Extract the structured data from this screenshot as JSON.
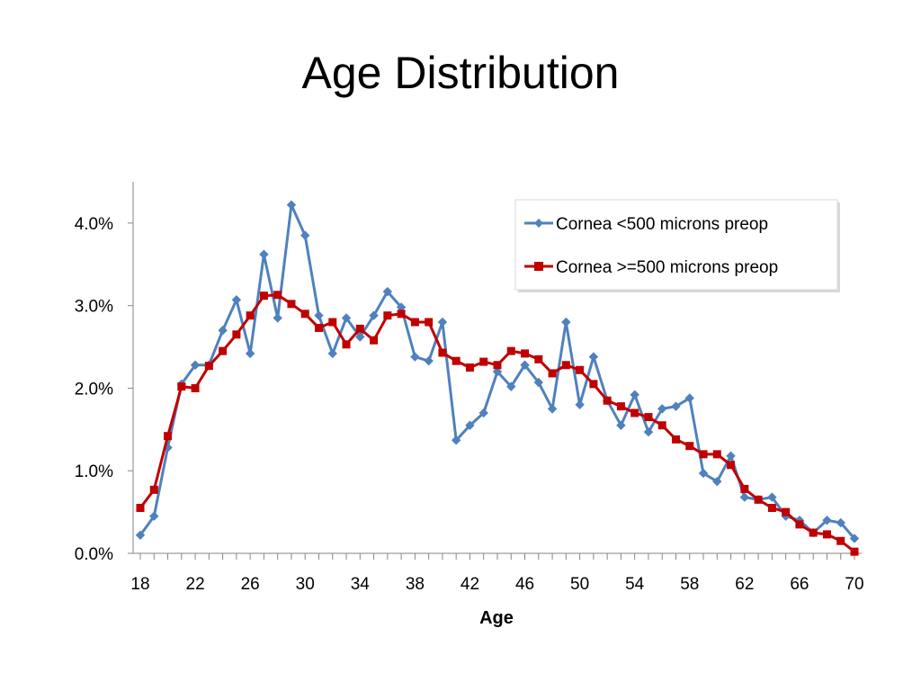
{
  "slide": {
    "title": "Age Distribution"
  },
  "colors": {
    "series1": "#4F81BD",
    "series2": "#C00000",
    "axis": "#868686"
  },
  "chart_data": {
    "type": "line",
    "title": "",
    "xlabel": "Age",
    "ylabel": "",
    "x": [
      18,
      19,
      20,
      21,
      22,
      23,
      24,
      25,
      26,
      27,
      28,
      29,
      30,
      31,
      32,
      33,
      34,
      35,
      36,
      37,
      38,
      39,
      40,
      41,
      42,
      43,
      44,
      45,
      46,
      47,
      48,
      49,
      50,
      51,
      52,
      53,
      54,
      55,
      56,
      57,
      58,
      59,
      60,
      61,
      62,
      63,
      64,
      65,
      66,
      67,
      68,
      69,
      70
    ],
    "x_ticks": [
      "18",
      "22",
      "26",
      "30",
      "34",
      "38",
      "42",
      "46",
      "50",
      "54",
      "58",
      "62",
      "66",
      "70"
    ],
    "y_ticks": [
      "0.0%",
      "1.0%",
      "2.0%",
      "3.0%",
      "4.0%"
    ],
    "ylim": [
      0,
      4.5
    ],
    "y_unit": "percent",
    "legend_position": "top-right",
    "series": [
      {
        "name": "Cornea <500 microns preop",
        "marker": "diamond",
        "values": [
          0.22,
          0.45,
          1.28,
          2.05,
          2.28,
          2.28,
          2.7,
          3.07,
          2.42,
          3.62,
          2.85,
          4.22,
          3.85,
          2.88,
          2.42,
          2.85,
          2.62,
          2.88,
          3.17,
          2.98,
          2.38,
          2.33,
          2.8,
          1.37,
          1.55,
          1.7,
          2.2,
          2.02,
          2.28,
          2.07,
          1.75,
          2.8,
          1.8,
          2.38,
          1.85,
          1.55,
          1.92,
          1.47,
          1.75,
          1.78,
          1.88,
          0.97,
          0.87,
          1.18,
          0.68,
          0.65,
          0.68,
          0.45,
          0.4,
          0.25,
          0.4,
          0.37,
          0.18
        ]
      },
      {
        "name": "Cornea >=500 microns preop",
        "marker": "square",
        "values": [
          0.55,
          0.77,
          1.42,
          2.02,
          2.0,
          2.27,
          2.45,
          2.65,
          2.88,
          3.12,
          3.13,
          3.02,
          2.9,
          2.73,
          2.8,
          2.53,
          2.72,
          2.58,
          2.88,
          2.9,
          2.8,
          2.8,
          2.43,
          2.33,
          2.25,
          2.32,
          2.28,
          2.45,
          2.42,
          2.35,
          2.18,
          2.28,
          2.22,
          2.05,
          1.85,
          1.78,
          1.7,
          1.65,
          1.55,
          1.38,
          1.3,
          1.2,
          1.2,
          1.07,
          0.78,
          0.65,
          0.55,
          0.5,
          0.35,
          0.25,
          0.23,
          0.15,
          0.02
        ]
      }
    ]
  }
}
